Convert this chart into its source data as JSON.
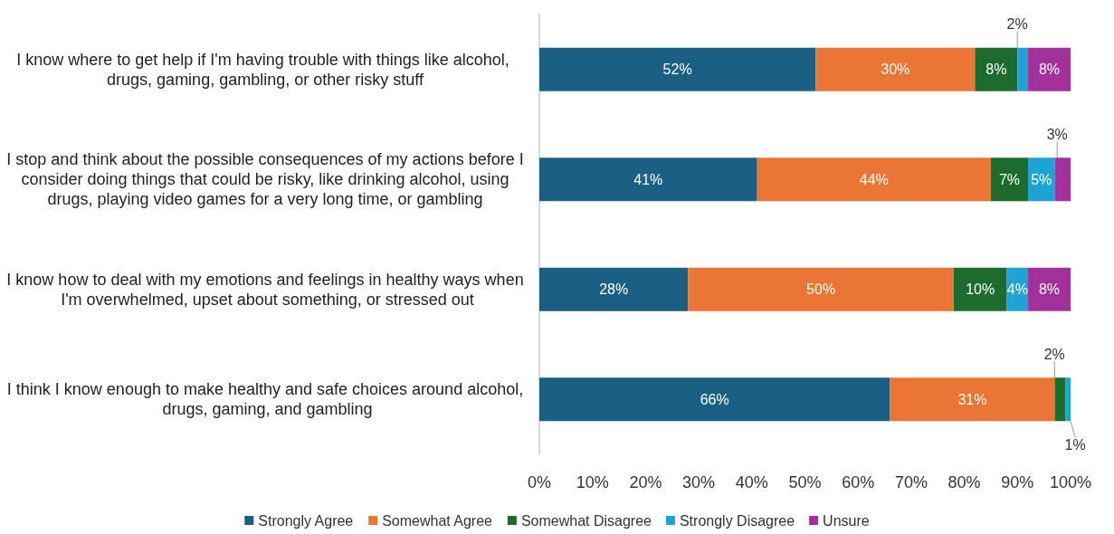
{
  "chart_data": {
    "type": "bar",
    "orientation": "horizontal",
    "stacked": true,
    "legend": "bottom",
    "grid": false,
    "categories": [
      "I know where to get help if I'm having trouble with things like alcohol, drugs, gaming, gambling, or other risky stuff",
      "I stop and think about the possible consequences of my actions before I consider doing things that could be risky, like drinking alcohol, using drugs, playing video games for a very long time, or gambling",
      "I know how to deal with my emotions and feelings in healthy ways when I'm overwhelmed, upset about something, or stressed out",
      "I think I know enough to make healthy and safe choices around alcohol, drugs, gaming, and gambling"
    ],
    "series": [
      {
        "name": "Strongly Agree",
        "color": "#1b5f84",
        "values": [
          52,
          41,
          28,
          66
        ],
        "value_labels": [
          "52%",
          "41%",
          "28%",
          "66%"
        ]
      },
      {
        "name": "Somewhat Agree",
        "color": "#eb7535",
        "values": [
          30,
          44,
          50,
          31
        ],
        "value_labels": [
          "30%",
          "44%",
          "50%",
          "31%"
        ]
      },
      {
        "name": "Somewhat Disagree",
        "color": "#1e6b2e",
        "values": [
          8,
          7,
          10,
          2
        ],
        "value_labels": [
          "8%",
          "7%",
          "10%",
          "2%"
        ]
      },
      {
        "name": "Strongly Disagree",
        "color": "#1ea3d6",
        "values": [
          2,
          5,
          4,
          1
        ],
        "value_labels": [
          "2%",
          "5%",
          "4%",
          "1%"
        ]
      },
      {
        "name": "Unsure",
        "color": "#a3319b",
        "values": [
          8,
          3,
          8,
          null
        ],
        "value_labels": [
          "8%",
          "3%",
          "8%",
          null
        ]
      }
    ],
    "xlim": [
      0,
      100
    ],
    "xticks": [
      {
        "value": 0,
        "label": "0%"
      },
      {
        "value": 10,
        "label": "10%"
      },
      {
        "value": 20,
        "label": "20%"
      },
      {
        "value": 30,
        "label": "30%"
      },
      {
        "value": 40,
        "label": "40%"
      },
      {
        "value": 50,
        "label": "50%"
      },
      {
        "value": 60,
        "label": "60%"
      },
      {
        "value": 70,
        "label": "70%"
      },
      {
        "value": 80,
        "label": "80%"
      },
      {
        "value": 90,
        "label": "90%"
      },
      {
        "value": 100,
        "label": "100%"
      }
    ]
  }
}
